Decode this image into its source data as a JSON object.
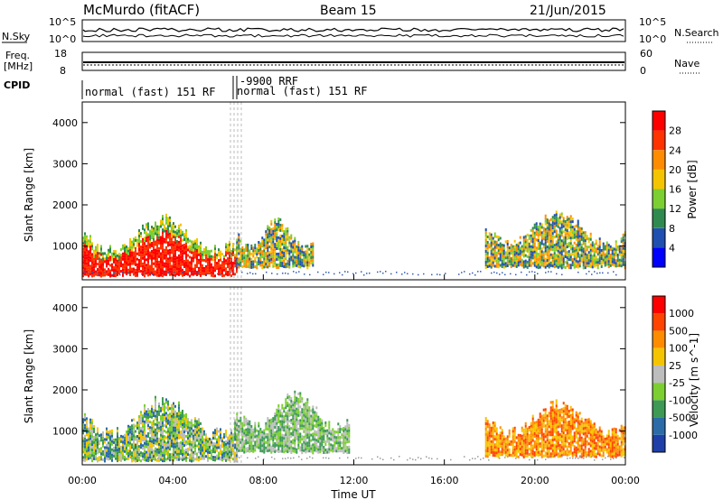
{
  "header": {
    "station": "McMurdo (fitACF)",
    "beam": "Beam 15",
    "date": "21/Jun/2015"
  },
  "strips": {
    "nsky_label": "N.Sky",
    "nsky_ticks": [
      "10^5",
      "10^0"
    ],
    "nsearch_label": "N.Search",
    "nsearch_ticks": [
      "10^5",
      "10^0"
    ],
    "freq_label_1": "Freq.",
    "freq_label_2": "[MHz]",
    "freq_ticks": [
      "18",
      "8"
    ],
    "nave_label": "Nave",
    "nave_ticks": [
      "60",
      "0"
    ],
    "cpid_label": "CPID",
    "cpid_text_1": "normal (fast) 151 RF",
    "cpid_text_2": "-9900 RRF",
    "cpid_text_3": "normal (fast) 151 RF"
  },
  "chart_data": [
    {
      "type": "heatmap",
      "panel": "power",
      "ylabel": "Slant Range [km]",
      "yticks": [
        "4000",
        "3000",
        "2000",
        "1000"
      ],
      "ylim": [
        180,
        4500
      ],
      "colorbar": {
        "label": "Power [dB]",
        "ticks": [
          "28",
          "24",
          "20",
          "16",
          "12",
          "8",
          "4"
        ],
        "colors": [
          "#0000ff",
          "#1f4fb0",
          "#2f8a4f",
          "#7ccf30",
          "#f5c400",
          "#ff8c00",
          "#ff3300",
          "#ff0000"
        ]
      },
      "regions": [
        {
          "t0": 0.0,
          "t1": 6.8,
          "r0": 300,
          "r1": 1800,
          "level": "high"
        },
        {
          "t0": 6.8,
          "t1": 10.2,
          "r0": 500,
          "r1": 1700,
          "level": "medium"
        },
        {
          "t0": 17.8,
          "t1": 24.0,
          "r0": 500,
          "r1": 1900,
          "level": "medium"
        }
      ]
    },
    {
      "type": "heatmap",
      "panel": "velocity",
      "ylabel": "Slant Range [km]",
      "yticks": [
        "4000",
        "3000",
        "2000",
        "1000"
      ],
      "ylim": [
        180,
        4500
      ],
      "colorbar": {
        "label": "Velocity [m s^-1]",
        "ticks": [
          "1000",
          "500",
          "100",
          "25",
          "-25",
          "-100",
          "-500",
          "-1000"
        ],
        "colors": [
          "#1e3fa8",
          "#2b6ca8",
          "#3c9a55",
          "#7ccf30",
          "#bdbdbd",
          "#f5c400",
          "#ff8c00",
          "#ff4400",
          "#ff0000"
        ]
      },
      "regions": [
        {
          "t0": 0.0,
          "t1": 6.8,
          "r0": 300,
          "r1": 1900,
          "level": "mixed"
        },
        {
          "t0": 6.8,
          "t1": 11.8,
          "r0": 500,
          "r1": 2000,
          "level": "green"
        },
        {
          "t0": 17.8,
          "t1": 24.0,
          "r0": 400,
          "r1": 1800,
          "level": "orange"
        }
      ]
    }
  ],
  "xaxis": {
    "label": "Time UT",
    "ticks": [
      "00:00",
      "04:00",
      "08:00",
      "12:00",
      "16:00",
      "20:00",
      "00:00"
    ]
  }
}
